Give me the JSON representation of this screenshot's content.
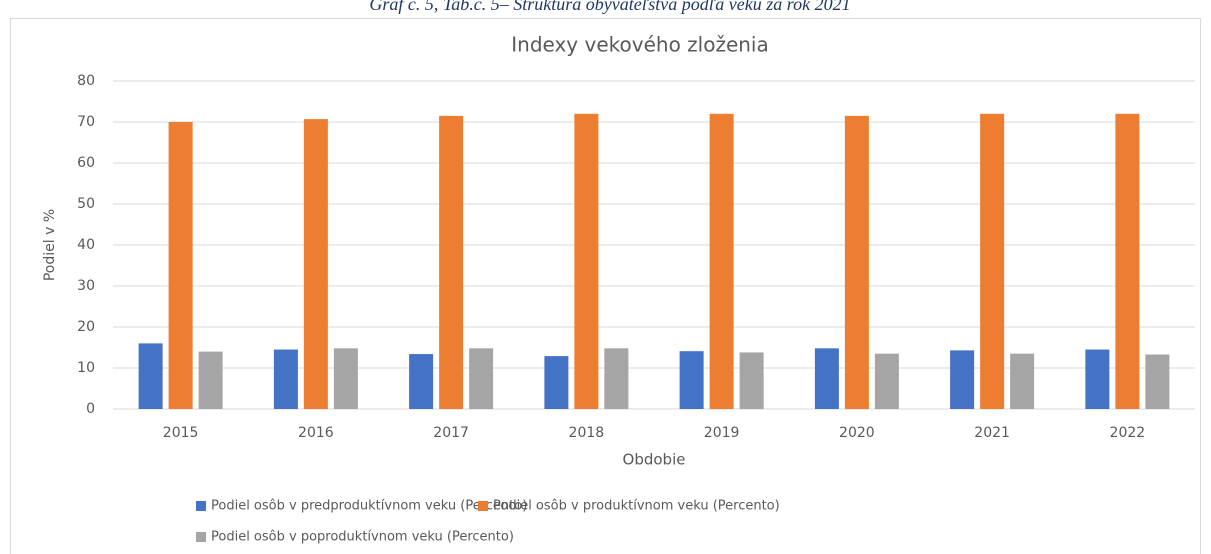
{
  "chart_data": {
    "type": "bar",
    "caption": "Graf č. 5, Tab.č. 5– Štruktúra obyvateľstva podľa veku za rok 2021",
    "title": "Indexy vekového zloženia",
    "x_label": "Obdobie",
    "y_label": "Podiel v %",
    "categories": [
      "2015",
      "2016",
      "2017",
      "2018",
      "2019",
      "2020",
      "2021",
      "2022"
    ],
    "series": [
      {
        "name": "Podiel osôb v predproduktívnom veku (Percento)",
        "color": "#4472c4",
        "values": [
          16,
          14.5,
          13.4,
          12.9,
          14.1,
          14.8,
          14.3,
          14.5
        ]
      },
      {
        "name": "Podiel osôb v produktívnom veku (Percento)",
        "color": "#ed7d31",
        "values": [
          70,
          70.7,
          71.5,
          72,
          72,
          71.5,
          72,
          72
        ]
      },
      {
        "name": "Podiel osôb v poproduktívnom veku (Percento)",
        "color": "#a5a5a5",
        "values": [
          14,
          14.8,
          14.8,
          14.8,
          13.8,
          13.5,
          13.5,
          13.3
        ]
      }
    ],
    "ylim": [
      0,
      80
    ],
    "yticks": [
      0,
      10,
      20,
      30,
      40,
      50,
      60,
      70,
      80
    ],
    "grid": true
  }
}
